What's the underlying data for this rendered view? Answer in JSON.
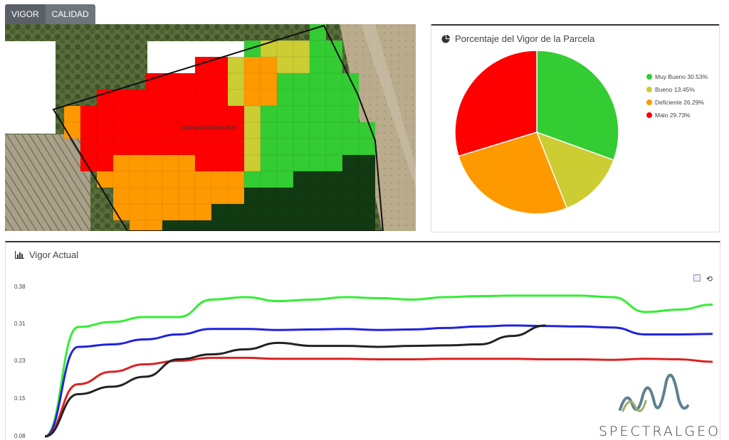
{
  "tabs": [
    {
      "label": "VIGOR",
      "active": true
    },
    {
      "label": "CALIDAD",
      "active": false
    }
  ],
  "map": {
    "parcel_label": "26120A01000313000UG"
  },
  "pie_panel": {
    "title": "Porcentaje del Vigor de la Parcela",
    "icon": "pie-chart-icon",
    "legend": [
      {
        "label": "Muy Bueno 30.53%",
        "color": "#33cc33"
      },
      {
        "label": "Bueno 13.45%",
        "color": "#cccc33"
      },
      {
        "label": "Deficiente 26.29%",
        "color": "#ff9900"
      },
      {
        "label": "Malo 29.73%",
        "color": "#ff0000"
      }
    ]
  },
  "line_panel": {
    "title": "Vigor Actual",
    "icon": "bar-chart-icon",
    "tools": [
      "image-icon",
      "reset-icon"
    ]
  },
  "logo": {
    "text": "SPECTRALGEO"
  },
  "chart_data": [
    {
      "type": "pie",
      "categories": [
        "Muy Bueno",
        "Bueno",
        "Deficiente",
        "Malo"
      ],
      "values": [
        30.53,
        13.45,
        26.29,
        29.73
      ],
      "colors": [
        "#33cc33",
        "#cccc33",
        "#ff9900",
        "#ff0000"
      ],
      "legend_position": "right"
    },
    {
      "type": "line",
      "yticks": [
        "0.38",
        "0.31",
        "0.23",
        "0.15",
        "0.08"
      ],
      "ytick_values": [
        0.38,
        0.31,
        0.23,
        0.15,
        0.08
      ],
      "ylim": [
        0.08,
        0.38
      ],
      "x": [
        0,
        1,
        2,
        3,
        4,
        5,
        6,
        7,
        8,
        9,
        10,
        11,
        12,
        13,
        14,
        15,
        16,
        17,
        18,
        19,
        20
      ],
      "series": [
        {
          "color": "#33ee33",
          "values": [
            0.08,
            0.3,
            0.31,
            0.32,
            0.32,
            0.355,
            0.36,
            0.352,
            0.355,
            0.36,
            0.358,
            0.355,
            0.36,
            0.362,
            0.363,
            0.363,
            0.363,
            0.36,
            0.33,
            0.335,
            0.345
          ]
        },
        {
          "color": "#2222dd",
          "values": [
            0.08,
            0.26,
            0.265,
            0.275,
            0.285,
            0.296,
            0.296,
            0.294,
            0.295,
            0.296,
            0.294,
            0.295,
            0.298,
            0.301,
            0.303,
            0.302,
            0.301,
            0.299,
            0.285,
            0.285,
            0.286
          ]
        },
        {
          "color": "#dd2222",
          "values": [
            0.08,
            0.185,
            0.21,
            0.225,
            0.232,
            0.238,
            0.238,
            0.236,
            0.236,
            0.236,
            0.235,
            0.235,
            0.236,
            0.236,
            0.236,
            0.235,
            0.235,
            0.234,
            0.236,
            0.235,
            0.23
          ]
        },
        {
          "color": "#222222",
          "values": [
            0.08,
            0.165,
            0.18,
            0.2,
            0.235,
            0.245,
            0.255,
            0.268,
            0.262,
            0.262,
            0.26,
            0.262,
            0.263,
            0.265,
            0.282,
            0.303,
            null,
            null,
            null,
            null,
            null
          ]
        }
      ]
    }
  ]
}
